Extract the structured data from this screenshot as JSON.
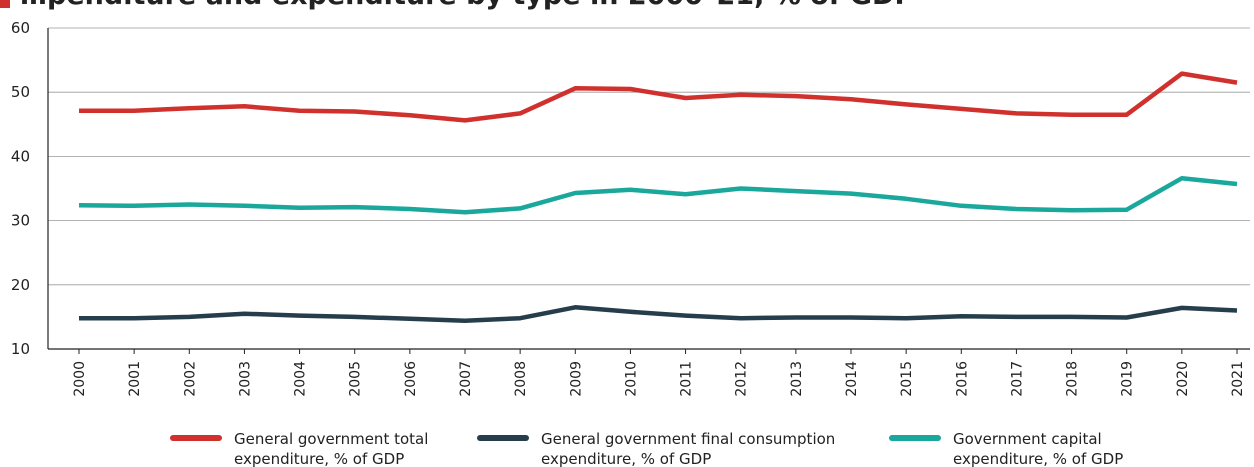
{
  "chart_data": {
    "type": "line",
    "title": "…penditure and expenditure by type in 2000–21, % of GDP",
    "xlabel": "",
    "ylabel": "",
    "ylim": [
      10,
      60
    ],
    "yticks": [
      10,
      20,
      30,
      40,
      50,
      60
    ],
    "grid": true,
    "legend_position": "bottom",
    "x": [
      "2000",
      "2001",
      "2002",
      "2003",
      "2004",
      "2005",
      "2006",
      "2007",
      "2008",
      "2009",
      "2010",
      "2011",
      "2012",
      "2013",
      "2014",
      "2015",
      "2016",
      "2017",
      "2018",
      "2019",
      "2020",
      "2021"
    ],
    "series": [
      {
        "name_lines": [
          "General government total",
          "expenditure, % of GDP"
        ],
        "color": "#d0312d",
        "values": [
          47.1,
          47.1,
          47.5,
          47.8,
          47.1,
          47.0,
          46.4,
          45.6,
          46.7,
          50.6,
          50.5,
          49.1,
          49.6,
          49.4,
          48.9,
          48.1,
          47.4,
          46.7,
          46.5,
          46.5,
          52.9,
          51.5
        ]
      },
      {
        "name_lines": [
          "General government final consumption",
          "expenditure, % of GDP"
        ],
        "color": "#263e4b",
        "values": [
          14.8,
          14.8,
          15.0,
          15.5,
          15.2,
          15.0,
          14.7,
          14.4,
          14.8,
          16.5,
          15.8,
          15.2,
          14.8,
          14.9,
          14.9,
          14.8,
          15.1,
          15.0,
          15.0,
          14.9,
          16.4,
          16.0
        ]
      },
      {
        "name_lines": [
          "Government capital",
          "expenditure, % of GDP"
        ],
        "color": "#1aa79c",
        "values": [
          32.4,
          32.3,
          32.5,
          32.3,
          32.0,
          32.1,
          31.8,
          31.3,
          31.9,
          34.3,
          34.8,
          34.1,
          35.0,
          34.6,
          34.2,
          33.4,
          32.3,
          31.8,
          31.6,
          31.7,
          36.6,
          35.7
        ]
      }
    ]
  }
}
